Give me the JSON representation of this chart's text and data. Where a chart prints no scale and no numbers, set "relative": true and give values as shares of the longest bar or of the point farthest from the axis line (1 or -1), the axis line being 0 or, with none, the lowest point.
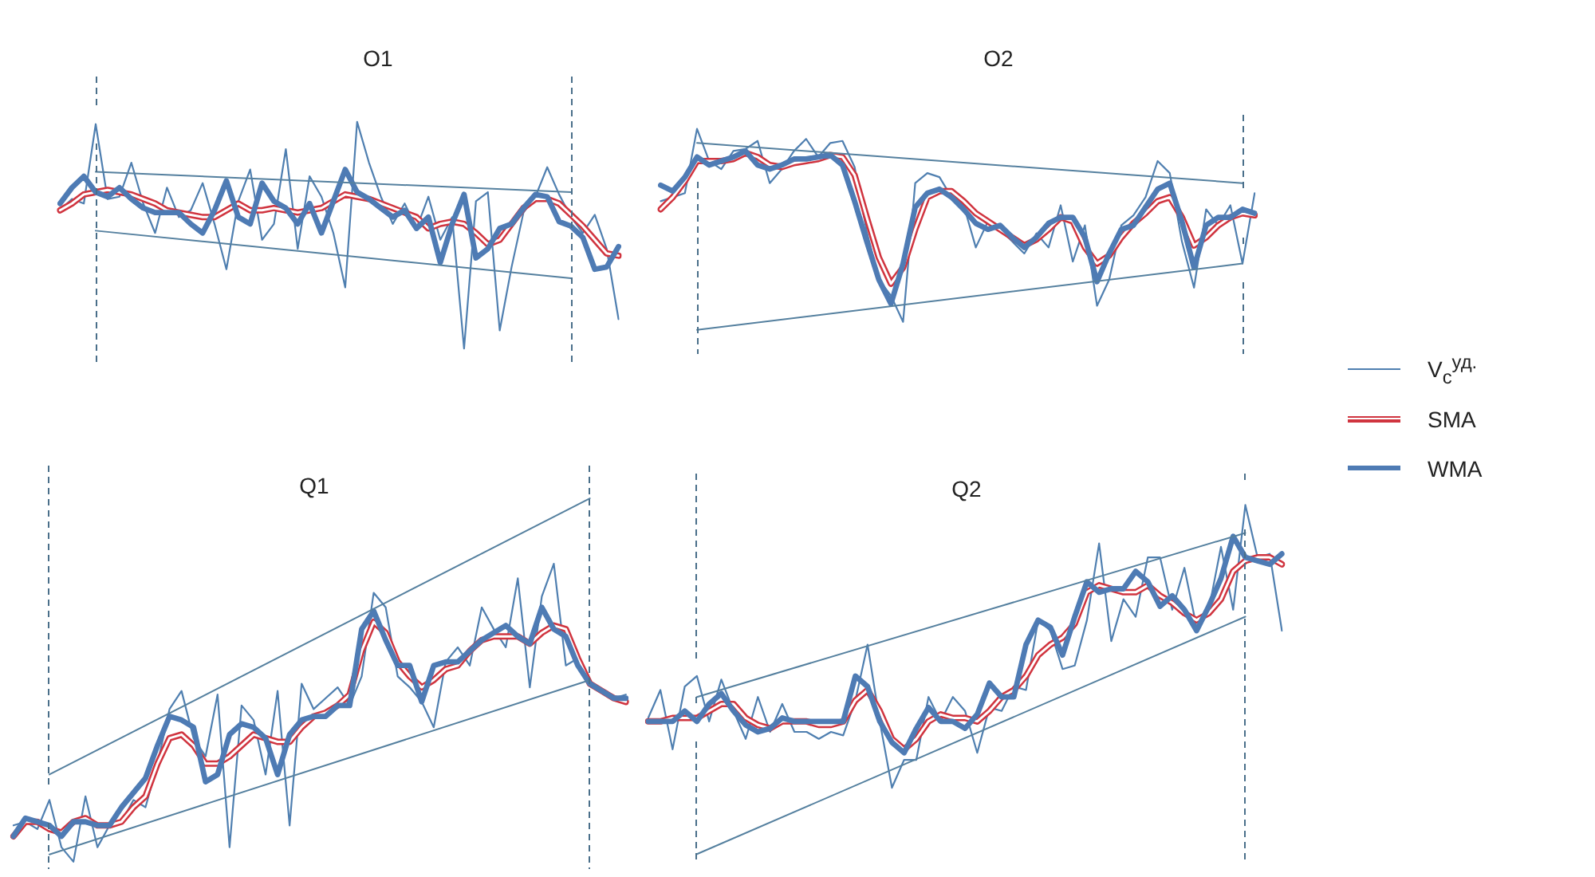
{
  "chart_data": [
    {
      "type": "line",
      "title": "O1",
      "relative": true,
      "categories": [
        null,
        null,
        null,
        null,
        null,
        null,
        null,
        null,
        null,
        null,
        null,
        null,
        null,
        null,
        null,
        null,
        null,
        null,
        null,
        null,
        null,
        null,
        null,
        null,
        null,
        null,
        null,
        null,
        null,
        null,
        null,
        null,
        null,
        null,
        null,
        null,
        null,
        null,
        null,
        null,
        null,
        null,
        null,
        null,
        null,
        null,
        null,
        null
      ],
      "series": [
        {
          "color": "#4f7fb0",
          "values": [
            0.61,
            0.66,
            0.64,
            0.99,
            0.66,
            0.67,
            0.82,
            0.64,
            0.51,
            0.71,
            0.58,
            0.61,
            0.73,
            0.55,
            0.35,
            0.65,
            0.79,
            0.48,
            0.55,
            0.88,
            0.44,
            0.76,
            0.67,
            0.51,
            0.27,
            1,
            0.82,
            0.67,
            0.55,
            0.64,
            0.53,
            0.67,
            0.48,
            0.58,
            0,
            0.65,
            0.69,
            0.08,
            0.36,
            0.6,
            0.67,
            0.8,
            0.68,
            0.58,
            0.51,
            0.59,
            0.44,
            0.13
          ]
        },
        {
          "color": "#d0343f",
          "values": [
            0.61,
            0.64,
            0.68,
            0.69,
            0.7,
            0.69,
            0.68,
            0.66,
            0.64,
            0.61,
            0.6,
            0.59,
            0.58,
            0.58,
            0.61,
            0.64,
            0.61,
            0.61,
            0.62,
            0.61,
            0.6,
            0.61,
            0.62,
            0.65,
            0.68,
            0.67,
            0.66,
            0.64,
            0.62,
            0.6,
            0.58,
            0.53,
            0.55,
            0.56,
            0.55,
            0.51,
            0.46,
            0.48,
            0.55,
            0.62,
            0.66,
            0.66,
            0.64,
            0.59,
            0.54,
            0.48,
            0.42,
            0.41
          ]
        },
        {
          "color": "#4e7bb4",
          "values": [
            0.64,
            0.71,
            0.76,
            0.69,
            0.67,
            0.71,
            0.66,
            0.62,
            0.6,
            0.6,
            0.6,
            0.55,
            0.51,
            0.61,
            0.74,
            0.58,
            0.55,
            0.73,
            0.65,
            0.62,
            0.55,
            0.64,
            0.51,
            0.65,
            0.79,
            0.69,
            0.66,
            0.62,
            0.58,
            0.61,
            0.53,
            0.58,
            0.38,
            0.55,
            0.68,
            0.4,
            0.44,
            0.53,
            0.55,
            0.62,
            0.68,
            0.67,
            0.56,
            0.54,
            0.49,
            0.35,
            0.36,
            0.45
          ]
        },
        {
          "color": "#55809f",
          "values": [
            null,
            null,
            null,
            0.78,
            null,
            null,
            null,
            null,
            null,
            null,
            null,
            null,
            null,
            null,
            null,
            null,
            null,
            null,
            null,
            null,
            null,
            null,
            null,
            null,
            null,
            null,
            null,
            null,
            null,
            null,
            null,
            null,
            null,
            null,
            null,
            null,
            null,
            null,
            null,
            null,
            null,
            null,
            null,
            0.69,
            null,
            null,
            null,
            null
          ]
        },
        {
          "color": "#55809f",
          "values": [
            null,
            null,
            null,
            0.52,
            null,
            null,
            null,
            null,
            null,
            null,
            null,
            null,
            null,
            null,
            null,
            null,
            null,
            null,
            null,
            null,
            null,
            null,
            null,
            null,
            null,
            null,
            null,
            null,
            null,
            null,
            null,
            null,
            null,
            null,
            null,
            null,
            null,
            null,
            null,
            null,
            null,
            null,
            null,
            0.31,
            null,
            null,
            null,
            null
          ]
        }
      ]
    },
    {
      "type": "line",
      "title": "O2",
      "relative": true,
      "legend": "right",
      "categories": [
        null,
        null,
        null,
        null,
        null,
        null,
        null,
        null,
        null,
        null,
        null,
        null,
        null,
        null,
        null,
        null,
        null,
        null,
        null,
        null,
        null,
        null,
        null,
        null,
        null,
        null,
        null,
        null,
        null,
        null,
        null,
        null,
        null,
        null,
        null,
        null,
        null,
        null,
        null,
        null,
        null,
        null,
        null,
        null,
        null,
        null,
        null,
        null,
        null,
        null
      ],
      "series": [
        {
          "name": "V$_{c}$$^{уд.}$",
          "color": "#4f7fb0",
          "values": [
            0.64,
            0.66,
            0.68,
            1,
            0.84,
            0.8,
            0.89,
            0.9,
            0.94,
            0.73,
            0.8,
            0.89,
            0.95,
            0.86,
            0.93,
            0.94,
            0.81,
            0.49,
            0.25,
            0.17,
            0.04,
            0.73,
            0.78,
            0.76,
            0.66,
            0.62,
            0.41,
            0.54,
            0.5,
            0.44,
            0.38,
            0.48,
            0.41,
            0.62,
            0.34,
            0.52,
            0.12,
            0.25,
            0.52,
            0.57,
            0.66,
            0.84,
            0.78,
            0.44,
            0.21,
            0.6,
            0.52,
            0.62,
            0.33,
            0.68
          ]
        },
        {
          "name": "SMA",
          "color": "#d0343f",
          "values": [
            0.6,
            0.66,
            0.74,
            0.84,
            0.84,
            0.84,
            0.85,
            0.88,
            0.86,
            0.82,
            0.81,
            0.83,
            0.84,
            0.85,
            0.87,
            0.86,
            0.77,
            0.56,
            0.36,
            0.23,
            0.31,
            0.5,
            0.66,
            0.69,
            0.69,
            0.64,
            0.58,
            0.54,
            0.5,
            0.46,
            0.42,
            0.45,
            0.5,
            0.56,
            0.54,
            0.41,
            0.33,
            0.37,
            0.46,
            0.53,
            0.58,
            0.64,
            0.66,
            0.56,
            0.42,
            0.46,
            0.52,
            0.56,
            0.58,
            0.57
          ]
        },
        {
          "name": "WMA",
          "color": "#4e7bb4",
          "values": [
            0.72,
            0.69,
            0.76,
            0.86,
            0.82,
            0.84,
            0.86,
            0.89,
            0.82,
            0.8,
            0.82,
            0.85,
            0.85,
            0.86,
            0.87,
            0.82,
            0.64,
            0.44,
            0.25,
            0.13,
            0.33,
            0.61,
            0.68,
            0.7,
            0.66,
            0.6,
            0.53,
            0.5,
            0.52,
            0.46,
            0.41,
            0.46,
            0.53,
            0.56,
            0.56,
            0.46,
            0.24,
            0.38,
            0.5,
            0.52,
            0.61,
            0.7,
            0.73,
            0.54,
            0.31,
            0.52,
            0.56,
            0.56,
            0.6,
            0.58
          ]
        },
        {
          "color": "#55809f",
          "values": [
            null,
            null,
            null,
            0.93,
            null,
            null,
            null,
            null,
            null,
            null,
            null,
            null,
            null,
            null,
            null,
            null,
            null,
            null,
            null,
            null,
            null,
            null,
            null,
            null,
            null,
            null,
            null,
            null,
            null,
            null,
            null,
            null,
            null,
            null,
            null,
            null,
            null,
            null,
            null,
            null,
            null,
            null,
            null,
            null,
            null,
            null,
            null,
            null,
            0.73,
            null
          ]
        },
        {
          "color": "#55809f",
          "values": [
            null,
            null,
            null,
            0,
            null,
            null,
            null,
            null,
            null,
            null,
            null,
            null,
            null,
            null,
            null,
            null,
            null,
            null,
            null,
            null,
            null,
            null,
            null,
            null,
            null,
            null,
            null,
            null,
            null,
            null,
            null,
            null,
            null,
            null,
            null,
            null,
            null,
            null,
            null,
            null,
            null,
            null,
            null,
            null,
            null,
            null,
            null,
            null,
            0.33,
            null
          ]
        }
      ]
    },
    {
      "type": "line",
      "title": "Q1",
      "relative": true,
      "categories": [
        null,
        null,
        null,
        null,
        null,
        null,
        null,
        null,
        null,
        null,
        null,
        null,
        null,
        null,
        null,
        null,
        null,
        null,
        null,
        null,
        null,
        null,
        null,
        null,
        null,
        null,
        null,
        null,
        null,
        null,
        null,
        null,
        null,
        null,
        null,
        null,
        null,
        null,
        null,
        null,
        null,
        null,
        null,
        null,
        null,
        null,
        null,
        null,
        null,
        null,
        null,
        null
      ],
      "series": [
        {
          "color": "#4f7fb0",
          "values": [
            0.1,
            0.11,
            0.09,
            0.17,
            0.04,
            0,
            0.18,
            0.04,
            0.1,
            0.11,
            0.17,
            0.15,
            0.27,
            0.42,
            0.47,
            0.34,
            0.29,
            0.46,
            0.04,
            0.43,
            0.39,
            0.24,
            0.47,
            0.1,
            0.49,
            0.42,
            0.45,
            0.48,
            0.43,
            0.51,
            0.74,
            0.7,
            0.51,
            0.48,
            0.44,
            0.37,
            0.55,
            0.59,
            0.54,
            0.7,
            0.64,
            0.59,
            0.78,
            0.48,
            0.73,
            0.82,
            0.54,
            0.56,
            0.49,
            0.47,
            0.45,
            0.46
          ]
        },
        {
          "color": "#d0343f",
          "values": [
            0.07,
            0.11,
            0.11,
            0.09,
            0.08,
            0.11,
            0.12,
            0.1,
            0.1,
            0.11,
            0.15,
            0.18,
            0.27,
            0.34,
            0.35,
            0.32,
            0.27,
            0.27,
            0.29,
            0.32,
            0.35,
            0.34,
            0.33,
            0.33,
            0.37,
            0.4,
            0.41,
            0.43,
            0.46,
            0.58,
            0.66,
            0.63,
            0.55,
            0.51,
            0.48,
            0.5,
            0.53,
            0.54,
            0.58,
            0.61,
            0.62,
            0.62,
            0.62,
            0.6,
            0.63,
            0.65,
            0.64,
            0.56,
            0.49,
            0.47,
            0.45,
            0.44
          ]
        },
        {
          "color": "#4e7bb4",
          "values": [
            0.07,
            0.12,
            0.11,
            0.1,
            0.07,
            0.11,
            0.11,
            0.1,
            0.1,
            0.15,
            0.19,
            0.23,
            0.32,
            0.4,
            0.39,
            0.37,
            0.22,
            0.24,
            0.35,
            0.38,
            0.37,
            0.34,
            0.24,
            0.35,
            0.39,
            0.4,
            0.4,
            0.43,
            0.43,
            0.64,
            0.69,
            0.61,
            0.54,
            0.54,
            0.44,
            0.54,
            0.55,
            0.55,
            0.58,
            0.61,
            0.63,
            0.65,
            0.62,
            0.6,
            0.7,
            0.64,
            0.62,
            0.54,
            0.49,
            0.47,
            0.45,
            0.45
          ]
        },
        {
          "color": "#55809f",
          "values": [
            null,
            null,
            null,
            0.24,
            null,
            null,
            null,
            null,
            null,
            null,
            null,
            null,
            null,
            null,
            null,
            null,
            null,
            null,
            null,
            null,
            null,
            null,
            null,
            null,
            null,
            null,
            null,
            null,
            null,
            null,
            null,
            null,
            null,
            null,
            null,
            null,
            null,
            null,
            null,
            null,
            null,
            null,
            null,
            null,
            null,
            null,
            null,
            null,
            1,
            null,
            null,
            null
          ]
        },
        {
          "color": "#55809f",
          "values": [
            null,
            null,
            null,
            0.02,
            null,
            null,
            null,
            null,
            null,
            null,
            null,
            null,
            null,
            null,
            null,
            null,
            null,
            null,
            null,
            null,
            null,
            null,
            null,
            null,
            null,
            null,
            null,
            null,
            null,
            null,
            null,
            null,
            null,
            null,
            null,
            null,
            null,
            null,
            null,
            null,
            null,
            null,
            null,
            null,
            null,
            null,
            null,
            null,
            0.5,
            null,
            null,
            null
          ]
        }
      ]
    },
    {
      "type": "line",
      "title": "Q2",
      "relative": true,
      "categories": [
        null,
        null,
        null,
        null,
        null,
        null,
        null,
        null,
        null,
        null,
        null,
        null,
        null,
        null,
        null,
        null,
        null,
        null,
        null,
        null,
        null,
        null,
        null,
        null,
        null,
        null,
        null,
        null,
        null,
        null,
        null,
        null,
        null,
        null,
        null,
        null,
        null,
        null,
        null,
        null,
        null,
        null,
        null,
        null,
        null,
        null,
        null,
        null,
        null,
        null,
        null,
        null,
        null
      ],
      "series": [
        {
          "color": "#4f7fb0",
          "values": [
            0.39,
            0.47,
            0.3,
            0.48,
            0.51,
            0.38,
            0.5,
            0.41,
            0.33,
            0.45,
            0.35,
            0.43,
            0.35,
            0.35,
            0.33,
            0.35,
            0.34,
            0.44,
            0.6,
            0.38,
            0.19,
            0.27,
            0.27,
            0.45,
            0.38,
            0.45,
            0.41,
            0.29,
            0.42,
            0.41,
            0.48,
            0.47,
            0.67,
            0.64,
            0.53,
            0.54,
            0.67,
            0.89,
            0.61,
            0.73,
            0.68,
            0.85,
            0.85,
            0.7,
            0.82,
            0.65,
            0.7,
            0.88,
            0.7,
            1,
            0.85,
            0.86,
            0.64
          ]
        },
        {
          "color": "#d0343f",
          "values": [
            0.38,
            0.38,
            0.39,
            0.39,
            0.39,
            0.41,
            0.43,
            0.43,
            0.39,
            0.37,
            0.36,
            0.38,
            0.38,
            0.38,
            0.37,
            0.37,
            0.38,
            0.44,
            0.47,
            0.41,
            0.33,
            0.3,
            0.33,
            0.38,
            0.4,
            0.39,
            0.39,
            0.38,
            0.41,
            0.45,
            0.47,
            0.51,
            0.57,
            0.6,
            0.62,
            0.66,
            0.75,
            0.77,
            0.76,
            0.75,
            0.75,
            0.77,
            0.74,
            0.72,
            0.69,
            0.67,
            0.69,
            0.73,
            0.81,
            0.84,
            0.85,
            0.85,
            0.83
          ]
        },
        {
          "color": "#4e7bb4",
          "values": [
            0.38,
            0.38,
            0.38,
            0.41,
            0.38,
            0.43,
            0.46,
            0.41,
            0.37,
            0.35,
            0.36,
            0.39,
            0.38,
            0.38,
            0.38,
            0.38,
            0.38,
            0.51,
            0.48,
            0.38,
            0.32,
            0.29,
            0.36,
            0.42,
            0.38,
            0.38,
            0.36,
            0.4,
            0.49,
            0.45,
            0.45,
            0.6,
            0.67,
            0.65,
            0.57,
            0.68,
            0.78,
            0.75,
            0.76,
            0.76,
            0.81,
            0.78,
            0.71,
            0.74,
            0.7,
            0.64,
            0.71,
            0.79,
            0.91,
            0.85,
            0.84,
            0.83,
            0.86
          ]
        },
        {
          "color": "#55809f",
          "values": [
            null,
            null,
            null,
            null,
            0.45,
            null,
            null,
            null,
            null,
            null,
            null,
            null,
            null,
            null,
            null,
            null,
            null,
            null,
            null,
            null,
            null,
            null,
            null,
            null,
            null,
            null,
            null,
            null,
            null,
            null,
            null,
            null,
            null,
            null,
            null,
            null,
            null,
            null,
            null,
            null,
            null,
            null,
            null,
            null,
            null,
            null,
            null,
            null,
            null,
            0.92,
            null,
            null,
            null
          ]
        },
        {
          "color": "#55809f",
          "values": [
            null,
            null,
            null,
            null,
            0,
            null,
            null,
            null,
            null,
            null,
            null,
            null,
            null,
            null,
            null,
            null,
            null,
            null,
            null,
            null,
            null,
            null,
            null,
            null,
            null,
            null,
            null,
            null,
            null,
            null,
            null,
            null,
            null,
            null,
            null,
            null,
            null,
            null,
            null,
            null,
            null,
            null,
            null,
            null,
            null,
            null,
            null,
            null,
            null,
            0.68,
            null,
            null,
            null
          ]
        }
      ]
    }
  ]
}
